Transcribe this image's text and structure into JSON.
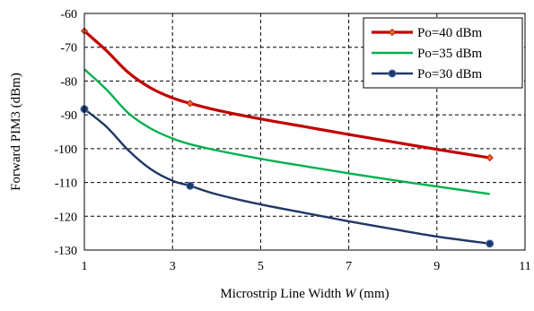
{
  "chart_data": {
    "type": "line",
    "xlabel_prefix": "Microstrip Line Width ",
    "xlabel_var": "W",
    "xlabel_suffix": " (mm)",
    "ylabel": "Forward PIM3  (dBm)",
    "xlim": [
      1,
      11
    ],
    "ylim": [
      -130,
      -60
    ],
    "xticks": [
      1,
      3,
      5,
      7,
      9,
      11
    ],
    "yticks": [
      -60,
      -70,
      -80,
      -90,
      -100,
      -110,
      -120,
      -130
    ],
    "grid": true,
    "legend_position": "top-right",
    "series": [
      {
        "name": "Po=40 dBm",
        "color": "#c00000",
        "marker": "diamond",
        "markers": [
          [
            1,
            -65.2
          ],
          [
            3.4,
            -86.6
          ],
          [
            10.2,
            -102.7
          ]
        ],
        "points": [
          [
            1,
            -65.2
          ],
          [
            1.5,
            -71
          ],
          [
            2,
            -77.5
          ],
          [
            2.5,
            -82
          ],
          [
            3,
            -85
          ],
          [
            3.4,
            -86.6
          ],
          [
            4,
            -88.6
          ],
          [
            5,
            -91.2
          ],
          [
            6,
            -93.5
          ],
          [
            7,
            -95.8
          ],
          [
            8,
            -98
          ],
          [
            9,
            -100.2
          ],
          [
            10.2,
            -102.7
          ]
        ]
      },
      {
        "name": "Po=35 dBm",
        "color": "#00b050",
        "marker": "none",
        "markers": [],
        "points": [
          [
            1,
            -76.5
          ],
          [
            1.5,
            -82.5
          ],
          [
            2,
            -89.5
          ],
          [
            2.5,
            -94
          ],
          [
            3,
            -97
          ],
          [
            3.4,
            -98.7
          ],
          [
            4,
            -100.5
          ],
          [
            5,
            -103
          ],
          [
            6,
            -105.2
          ],
          [
            7,
            -107.3
          ],
          [
            8,
            -109.3
          ],
          [
            9,
            -111.2
          ],
          [
            10.2,
            -113.4
          ]
        ]
      },
      {
        "name": "Po=30 dBm",
        "color": "#1f3864",
        "marker": "circle",
        "markers": [
          [
            1,
            -88.3
          ],
          [
            3.4,
            -111
          ],
          [
            10.2,
            -128.1
          ]
        ],
        "points": [
          [
            1,
            -88.3
          ],
          [
            1.5,
            -93.5
          ],
          [
            2,
            -100.5
          ],
          [
            2.5,
            -106
          ],
          [
            3,
            -109.5
          ],
          [
            3.4,
            -111
          ],
          [
            4,
            -113.5
          ],
          [
            5,
            -116.5
          ],
          [
            6,
            -119
          ],
          [
            7,
            -121.5
          ],
          [
            8,
            -123.8
          ],
          [
            9,
            -126
          ],
          [
            10.2,
            -128.1
          ]
        ]
      }
    ]
  }
}
